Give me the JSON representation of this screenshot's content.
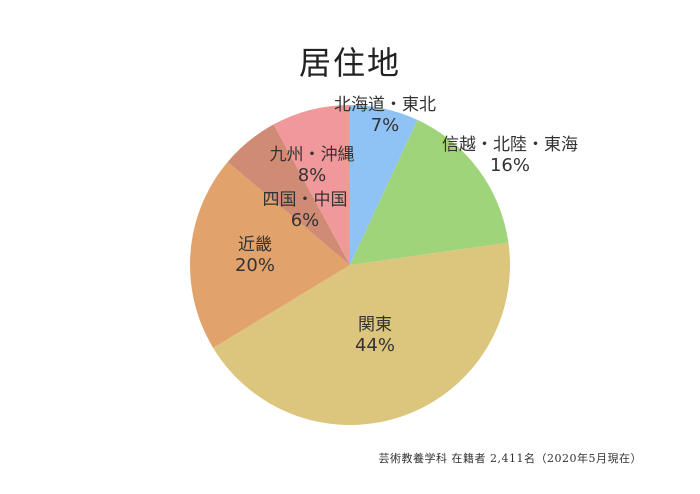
{
  "chart_data": {
    "type": "pie",
    "title": "居住地",
    "slices": [
      {
        "label": "北海道・東北",
        "value": 7,
        "display": "7%",
        "color": "#8fc3f5"
      },
      {
        "label": "信越・北陸・東海",
        "value": 16,
        "display": "16%",
        "color": "#9fd47a"
      },
      {
        "label": "関東",
        "value": 44,
        "display": "44%",
        "color": "#dcc57c"
      },
      {
        "label": "近畿",
        "value": 20,
        "display": "20%",
        "color": "#e2a26c"
      },
      {
        "label": "四国・中国",
        "value": 6,
        "display": "6%",
        "color": "#d08b75"
      },
      {
        "label": "九州・沖縄",
        "value": 8,
        "display": "8%",
        "color": "#f1999a"
      }
    ]
  },
  "footnote": "芸術教養学科 在籍者 2,411名（2020年5月現在）"
}
